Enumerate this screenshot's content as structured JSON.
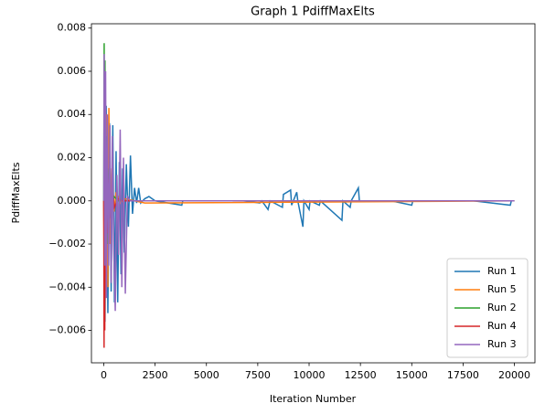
{
  "chart_data": {
    "type": "line",
    "title": "Graph 1 PdiffMaxElts",
    "x_label": "Iteration Number",
    "y_label": "PdiffMaxElts",
    "xlim": [
      -600,
      21000
    ],
    "ylim": [
      -0.0075,
      0.0082
    ],
    "xticks": [
      0,
      2500,
      5000,
      7500,
      10000,
      12500,
      15000,
      17500,
      20000
    ],
    "yticks": [
      {
        "value": -0.006,
        "label": "−0.006"
      },
      {
        "value": -0.004,
        "label": "−0.004"
      },
      {
        "value": -0.002,
        "label": "−0.002"
      },
      {
        "value": 0,
        "label": "0.000"
      },
      {
        "value": 0.002,
        "label": "0.002"
      },
      {
        "value": 0.004,
        "label": "0.004"
      },
      {
        "value": 0.006,
        "label": "0.006"
      },
      {
        "value": 0.008,
        "label": "0.008"
      }
    ],
    "legend": "lower right",
    "series": [
      {
        "name": "Run 1",
        "color": "#1f77b4",
        "x": [
          0,
          60,
          120,
          200,
          280,
          360,
          440,
          520,
          600,
          680,
          760,
          840,
          920,
          1000,
          1100,
          1200,
          1300,
          1400,
          1500,
          1600,
          1700,
          1800,
          2000,
          2200,
          2500,
          3800,
          3850,
          6800,
          7600,
          7700,
          8000,
          8100,
          8700,
          8750,
          9100,
          9150,
          9400,
          9450,
          9700,
          9750,
          10000,
          10050,
          10500,
          10550,
          11600,
          11650,
          12000,
          12050,
          12400,
          12450,
          14000,
          15000,
          15050,
          16000,
          18000,
          19800,
          19850,
          20000
        ],
        "values": [
          0,
          -0.0056,
          0.0044,
          -0.0052,
          0.0036,
          -0.0042,
          0.0035,
          -0.0047,
          0.0023,
          -0.0047,
          0.0018,
          -0.0034,
          0.0015,
          -0.0024,
          0.0017,
          -0.0012,
          0.0021,
          -0.0006,
          0.0006,
          -0.0001,
          0.0006,
          -0.0001,
          0.0001,
          0.0002,
          0,
          -0.0002,
          0,
          0,
          -0.0001,
          0,
          -0.0004,
          0,
          -0.0003,
          0.0003,
          0.0005,
          -0.0002,
          0.0004,
          0,
          -0.0012,
          0,
          -0.0004,
          0,
          -0.0002,
          0,
          -0.0009,
          0,
          -0.0003,
          0,
          0.0006,
          0,
          0,
          -0.0002,
          0,
          0,
          0,
          -0.0002,
          0,
          0
        ]
      },
      {
        "name": "Run 5",
        "color": "#ff7f0e",
        "x": [
          0,
          30,
          60,
          100,
          150,
          200,
          250,
          300,
          400,
          500,
          600,
          800,
          1000,
          1500,
          2000,
          20000
        ],
        "values": [
          0,
          -0.0055,
          0.0045,
          -0.003,
          0.004,
          -0.004,
          0.0043,
          -0.002,
          0.0015,
          -0.0005,
          0.0004,
          -0.0001,
          0.0001,
          0,
          -0.0001,
          0
        ]
      },
      {
        "name": "Run 2",
        "color": "#2ca02c",
        "x": [
          0,
          20,
          40,
          60,
          90,
          120,
          160,
          200,
          260,
          320,
          400,
          500,
          700,
          1000,
          20000
        ],
        "values": [
          0,
          0.0073,
          -0.0055,
          0.0065,
          -0.0029,
          0.003,
          -0.002,
          0.0015,
          -0.0008,
          0.0005,
          -0.0003,
          0.0002,
          0,
          0,
          0
        ]
      },
      {
        "name": "Run 4",
        "color": "#d62728",
        "x": [
          0,
          15,
          30,
          50,
          80,
          110,
          150,
          200,
          260,
          330,
          420,
          520,
          700,
          900,
          20000
        ],
        "values": [
          0,
          -0.0068,
          0.0049,
          -0.006,
          0.004,
          -0.0035,
          0.0025,
          -0.0015,
          0.001,
          -0.0008,
          0.0005,
          -0.0003,
          0.0001,
          0,
          0
        ]
      },
      {
        "name": "Run 3",
        "color": "#9467bd",
        "x": [
          0,
          20,
          50,
          90,
          130,
          180,
          240,
          300,
          360,
          420,
          480,
          560,
          640,
          720,
          800,
          880,
          960,
          1050,
          1150,
          1300,
          1500,
          20000
        ],
        "values": [
          0,
          0.0068,
          -0.003,
          0.006,
          -0.0045,
          0.004,
          -0.003,
          0.0035,
          -0.0038,
          0.003,
          -0.002,
          -0.0051,
          0.0012,
          -0.0025,
          0.0033,
          -0.004,
          0.002,
          -0.0043,
          0.0002,
          0,
          0,
          0
        ]
      }
    ]
  }
}
